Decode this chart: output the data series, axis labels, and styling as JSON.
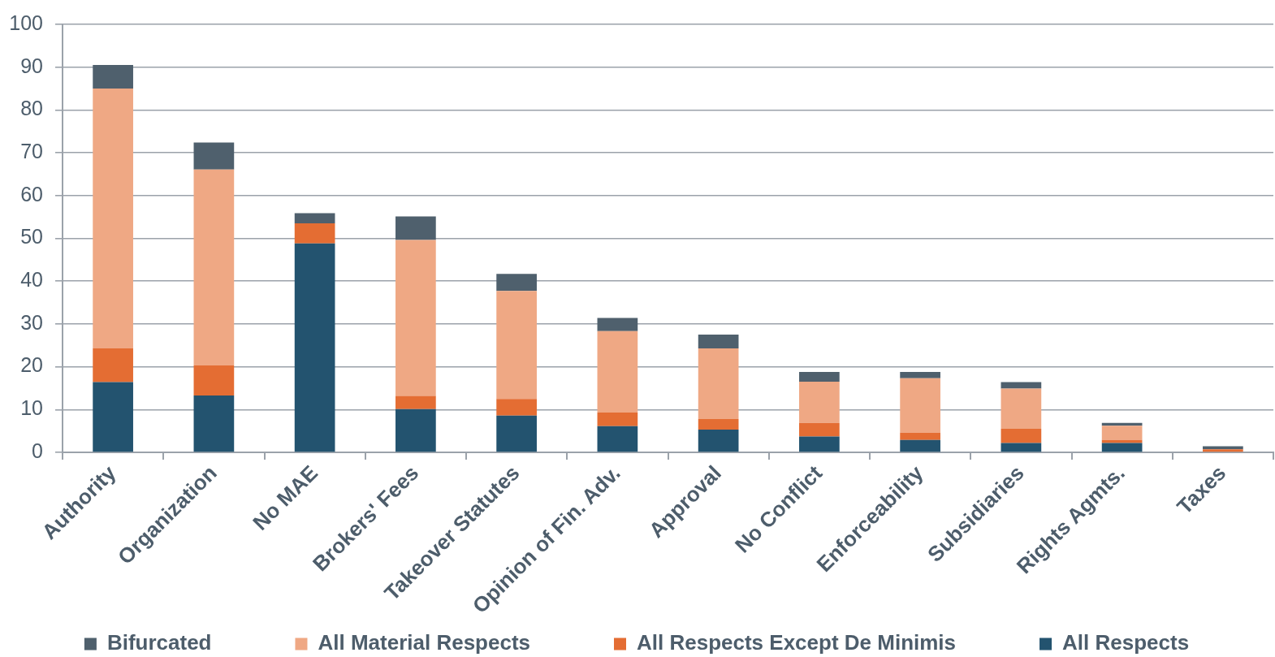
{
  "chart_data": {
    "type": "bar",
    "stacked": true,
    "categories": [
      "Authority",
      "Organization",
      "No MAE",
      "Brokers' Fees",
      "Takeover Statutes",
      "Opinion of Fin. Adv.",
      "Approval",
      "No Conflict",
      "Enforceability",
      "Subsidiaries",
      "Rights Agmts.",
      "Taxes"
    ],
    "series": [
      {
        "name": "All Respects",
        "color": "#23536f",
        "values": [
          16.4,
          13.3,
          48.8,
          10.1,
          8.6,
          6.1,
          5.3,
          3.7,
          2.9,
          2.2,
          2.2,
          0
        ]
      },
      {
        "name": "All Respects Except De Minimis",
        "color": "#e46d33",
        "values": [
          7.9,
          7.0,
          4.7,
          3.1,
          3.9,
          3.2,
          2.5,
          3.2,
          1.7,
          3.3,
          0.7,
          0.7
        ]
      },
      {
        "name": "All Material Respects",
        "color": "#efa884",
        "values": [
          60.7,
          45.8,
          0,
          36.4,
          25.2,
          19.0,
          16.5,
          9.6,
          12.7,
          9.4,
          3.3,
          0
        ]
      },
      {
        "name": "Bifurcated",
        "color": "#4f606d",
        "values": [
          5.5,
          6.3,
          2.4,
          5.5,
          4.0,
          3.1,
          3.2,
          2.3,
          1.5,
          1.5,
          0.7,
          0.7
        ]
      }
    ],
    "ylim": [
      0,
      100
    ],
    "yticks": [
      0,
      10,
      20,
      30,
      40,
      50,
      60,
      70,
      80,
      90,
      100
    ],
    "grid": "y",
    "legend": "bottom"
  }
}
